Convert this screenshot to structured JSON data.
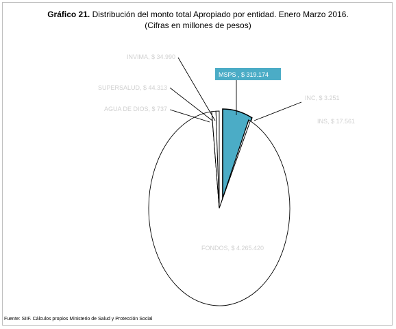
{
  "title": {
    "prefix": "Gráfico 21.",
    "main": "Distribución del monto total Apropiado por entidad. Enero Marzo 2016.",
    "subtitle": "(Cifras en millones de pesos)"
  },
  "source": "Fuente: SIIF. Cálculos propios Ministerio de Salud y Protección Social",
  "colors": {
    "highlight": "#4bacc6",
    "slice": "#ffffff",
    "outline": "#000000",
    "label": "#d0d0d0"
  },
  "chart_data": {
    "type": "pie",
    "title": "Distribución del monto total Apropiado por entidad. Enero Marzo 2016.",
    "unit": "millones de pesos",
    "slices": [
      {
        "name": "MSPS",
        "value": 319174,
        "label": "MSPS  , $ 319.174",
        "highlight": true
      },
      {
        "name": "INC",
        "value": 3251,
        "label": "INC, $ 3.251",
        "highlight": false
      },
      {
        "name": "INS",
        "value": 17561,
        "label": "INS, $ 17.561",
        "highlight": false
      },
      {
        "name": "FONDOS",
        "value": 4265420,
        "label": "FONDOS, $ 4.265.420",
        "highlight": false
      },
      {
        "name": "AGUA DE DIOS",
        "value": 737,
        "label": "AGUA DE DIOS, $ 737",
        "highlight": false
      },
      {
        "name": "SUPERSALUD",
        "value": 44313,
        "label": "SUPERSALUD, $ 44.313",
        "highlight": false
      },
      {
        "name": "INVIMA",
        "value": 34990,
        "label": "INVIMA, $ 34.990",
        "highlight": false
      }
    ]
  }
}
